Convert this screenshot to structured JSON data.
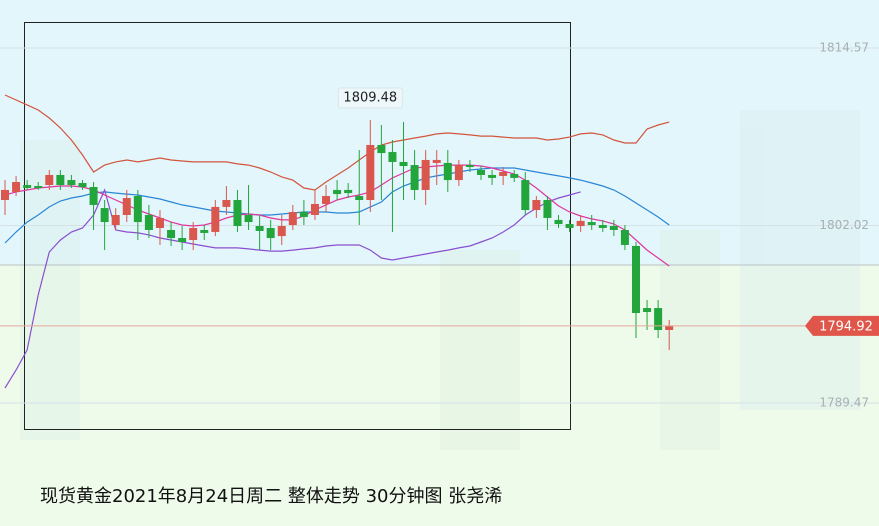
{
  "chart_data": {
    "type": "candlestick",
    "title": "现货黄金2021年8月24日周二 整体走势 30分钟图 张尧浠",
    "ylim": [
      1784.73,
      1817.96
    ],
    "yticks": [
      1814.57,
      1802.02,
      1789.47
    ],
    "grid": true,
    "up_color": "#d9574d",
    "down_color": "#22a53a",
    "last_price": 1794.92,
    "high_label": 1809.48,
    "open": [
      1803.82,
      1804.39,
      1804.88,
      1804.81,
      1804.88,
      1805.59,
      1805.23,
      1805.02,
      1804.74,
      1803.25,
      1802.05,
      1802.76,
      1804.1,
      1802.76,
      1801.84,
      1801.7,
      1801.13,
      1800.99,
      1801.7,
      1801.56,
      1803.33,
      1803.82,
      1802.76,
      1801.98,
      1801.84,
      1801.27,
      1802.05,
      1802.97,
      1802.76,
      1803.54,
      1804.53,
      1804.53,
      1804.1,
      1803.82,
      1807.71,
      1807.21,
      1806.51,
      1806.29,
      1804.53,
      1806.44,
      1806.44,
      1805.23,
      1806.29,
      1805.94,
      1805.59,
      1805.52,
      1805.66,
      1805.23,
      1803.11,
      1803.82,
      1802.41,
      1802.12,
      1801.98,
      1802.26,
      1802.05,
      1801.98,
      1801.7,
      1800.57,
      1796.18,
      1796.18,
      1794.63
    ],
    "high": [
      1805.23,
      1805.52,
      1805.23,
      1805.09,
      1805.94,
      1805.94,
      1805.59,
      1805.23,
      1805.09,
      1803.82,
      1803.25,
      1804.53,
      1804.53,
      1803.47,
      1803.11,
      1802.26,
      1801.98,
      1802.26,
      1802.05,
      1803.82,
      1804.81,
      1804.53,
      1804.88,
      1802.76,
      1802.41,
      1802.76,
      1803.47,
      1803.82,
      1804.53,
      1804.88,
      1805.23,
      1805.02,
      1807.35,
      1809.48,
      1809.12,
      1808.06,
      1809.34,
      1807.35,
      1807.35,
      1807.35,
      1807.35,
      1806.65,
      1806.65,
      1806.22,
      1805.94,
      1806.15,
      1805.94,
      1805.8,
      1804.1,
      1804.1,
      1802.76,
      1802.41,
      1802.76,
      1802.76,
      1802.41,
      1802.41,
      1802.05,
      1800.85,
      1796.75,
      1796.75,
      1795.34
    ],
    "low": [
      1802.76,
      1804.1,
      1804.53,
      1804.53,
      1804.53,
      1804.53,
      1804.67,
      1804.53,
      1801.7,
      1800.28,
      1801.7,
      1802.26,
      1800.99,
      1801.13,
      1800.64,
      1800.57,
      1800.28,
      1800.28,
      1800.99,
      1801.27,
      1802.76,
      1801.56,
      1801.7,
      1800.28,
      1800.28,
      1800.64,
      1801.7,
      1802.05,
      1802.41,
      1802.97,
      1803.82,
      1803.96,
      1802.05,
      1802.97,
      1803.82,
      1801.56,
      1803.82,
      1803.82,
      1803.47,
      1804.88,
      1804.39,
      1804.81,
      1805.8,
      1805.23,
      1804.88,
      1804.88,
      1805.09,
      1802.76,
      1802.55,
      1801.7,
      1801.84,
      1801.56,
      1801.56,
      1801.7,
      1801.56,
      1801.27,
      1800.28,
      1794.06,
      1794.63,
      1794.06,
      1793.21
    ],
    "close": [
      1804.53,
      1805.09,
      1804.67,
      1804.67,
      1805.59,
      1804.88,
      1804.88,
      1804.74,
      1803.47,
      1802.26,
      1802.76,
      1803.96,
      1802.26,
      1801.7,
      1802.55,
      1801.13,
      1800.85,
      1801.84,
      1801.49,
      1803.33,
      1803.82,
      1801.98,
      1802.26,
      1801.63,
      1801.13,
      1801.98,
      1802.97,
      1802.62,
      1803.54,
      1804.1,
      1804.24,
      1804.31,
      1803.82,
      1807.71,
      1807.14,
      1806.51,
      1806.22,
      1804.53,
      1806.65,
      1806.65,
      1805.23,
      1806.29,
      1806.15,
      1805.59,
      1805.38,
      1805.8,
      1805.38,
      1803.11,
      1803.82,
      1802.55,
      1802.12,
      1801.84,
      1802.34,
      1802.05,
      1801.84,
      1801.7,
      1800.64,
      1795.83,
      1795.9,
      1794.63,
      1794.92
    ],
    "lines": [
      {
        "color": "#d2553c",
        "values": [
          1811.24,
          1810.89,
          1810.54,
          1810.18,
          1809.62,
          1808.91,
          1808.06,
          1807.0,
          1805.8,
          1806.29,
          1806.51,
          1806.65,
          1806.51,
          1806.65,
          1806.79,
          1806.65,
          1806.58,
          1806.51,
          1806.51,
          1806.51,
          1806.51,
          1806.37,
          1806.29,
          1806.08,
          1805.8,
          1805.45,
          1805.23,
          1804.67,
          1804.53,
          1805.09,
          1805.59,
          1806.08,
          1806.65,
          1807.21,
          1807.71,
          1807.92,
          1808.06,
          1808.2,
          1808.34,
          1808.49,
          1808.56,
          1808.49,
          1808.42,
          1808.34,
          1808.34,
          1808.27,
          1808.2,
          1808.2,
          1808.2,
          1808.06,
          1808.13,
          1808.27,
          1808.49,
          1808.56,
          1808.42,
          1808.06,
          1807.85,
          1807.85,
          1808.84,
          1809.12,
          1809.33
        ]
      },
      {
        "color": "#2a86d6",
        "values": [
          1800.78,
          1801.56,
          1802.26,
          1802.76,
          1803.33,
          1803.75,
          1803.96,
          1804.1,
          1804.31,
          1804.39,
          1804.31,
          1804.24,
          1804.17,
          1804.03,
          1803.89,
          1803.68,
          1803.47,
          1803.33,
          1803.18,
          1803.04,
          1802.97,
          1802.9,
          1802.83,
          1802.76,
          1802.76,
          1802.83,
          1802.9,
          1802.97,
          1802.97,
          1802.97,
          1802.9,
          1802.9,
          1802.97,
          1803.33,
          1803.68,
          1804.39,
          1804.81,
          1805.09,
          1805.38,
          1805.52,
          1805.66,
          1805.8,
          1805.94,
          1806.01,
          1806.08,
          1806.08,
          1806.08,
          1805.94,
          1805.8,
          1805.66,
          1805.52,
          1805.38,
          1805.23,
          1805.02,
          1804.81,
          1804.53,
          1804.1,
          1803.61,
          1803.11,
          1802.62,
          1802.05
        ]
      },
      {
        "color": "#8a4fd0",
        "values": [
          1790.53,
          1791.8,
          1793.21,
          1797.1,
          1800.14,
          1800.99,
          1801.56,
          1801.84,
          1802.76,
          1804.53,
          1801.7,
          1801.56,
          1801.49,
          1801.35,
          1801.13,
          1800.99,
          1800.85,
          1800.71,
          1800.57,
          1800.43,
          1800.43,
          1800.43,
          1800.36,
          1800.28,
          1800.21,
          1800.21,
          1800.28,
          1800.36,
          1800.43,
          1800.57,
          1800.64,
          1800.64,
          1800.64,
          1800.28,
          1799.72,
          1799.58,
          1799.72,
          1799.86,
          1800.0,
          1800.14,
          1800.28,
          1800.43,
          1800.57,
          1800.85,
          1801.13,
          1801.56,
          1802.05,
          1802.76,
          1803.25,
          1803.68,
          1803.96,
          1804.17,
          1804.39,
          null,
          null,
          null,
          null,
          null,
          null,
          null,
          null
        ]
      },
      {
        "color": "#e0359e",
        "values": [
          1804.17,
          1804.39,
          1804.53,
          1804.67,
          1804.74,
          1804.81,
          1804.81,
          1804.74,
          1804.53,
          1804.17,
          1803.82,
          1803.47,
          1803.11,
          1802.83,
          1802.55,
          1802.26,
          1802.05,
          1801.98,
          1802.05,
          1802.26,
          1802.55,
          1802.76,
          1802.83,
          1802.76,
          1802.55,
          1802.41,
          1802.41,
          1802.69,
          1803.11,
          1803.47,
          1803.82,
          1804.03,
          1804.17,
          1804.39,
          1804.88,
          1805.38,
          1805.73,
          1806.08,
          1806.15,
          1806.22,
          1806.29,
          1806.29,
          1806.29,
          1806.22,
          1806.08,
          1805.87,
          1805.66,
          1805.23,
          1804.67,
          1804.03,
          1803.4,
          1802.97,
          1802.69,
          1802.48,
          1802.34,
          1802.12,
          1801.7,
          1800.99,
          1800.28,
          1799.72,
          1799.15
        ]
      }
    ]
  }
}
